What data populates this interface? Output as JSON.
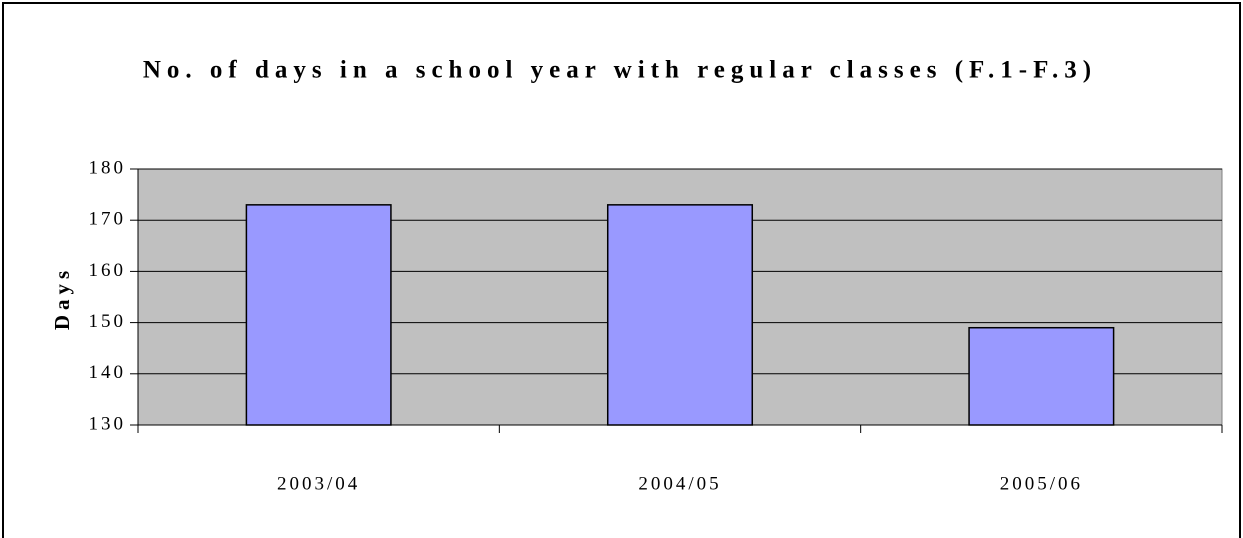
{
  "chart_data": {
    "type": "bar",
    "title": "No. of days in a school year with regular classes (F.1-F.3)",
    "y_label": "Days",
    "categories": [
      "2003/04",
      "2004/05",
      "2005/06"
    ],
    "values": [
      173,
      173,
      149
    ],
    "color": "#9999ff",
    "ylim": [
      130,
      180
    ],
    "yticks": [
      130,
      140,
      150,
      160,
      170,
      180
    ],
    "grid": true
  }
}
